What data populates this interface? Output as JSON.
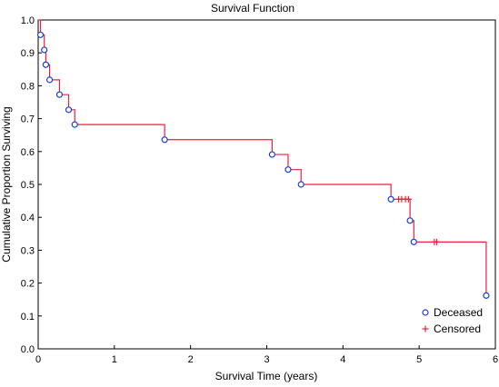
{
  "chart_data": {
    "type": "line",
    "title": "Survival Function",
    "xlabel": "Survival Time (years)",
    "ylabel": "Cumulative Proportion Surviving",
    "xlim": [
      0,
      6
    ],
    "ylim": [
      0,
      1.0
    ],
    "xticks": [
      "0",
      "1",
      "2",
      "3",
      "4",
      "5",
      "6"
    ],
    "yticks": [
      "0.0",
      "0.1",
      "0.2",
      "0.3",
      "0.4",
      "0.5",
      "0.6",
      "0.7",
      "0.8",
      "0.9",
      "1.0"
    ],
    "grid": false,
    "legend_position": "bottom-right",
    "colors": {
      "line": "#e8223a",
      "deceased_marker": "#1a3fd6",
      "censored_marker": "#e8223a",
      "frame": "#000000"
    },
    "series": [
      {
        "name": "Deceased",
        "marker": "circle",
        "x": [
          0.03,
          0.08,
          0.1,
          0.15,
          0.28,
          0.4,
          0.48,
          1.66,
          3.07,
          3.28,
          3.45,
          4.63,
          4.88,
          4.93,
          5.88
        ],
        "y": [
          0.955,
          0.909,
          0.864,
          0.818,
          0.773,
          0.727,
          0.682,
          0.636,
          0.591,
          0.545,
          0.5,
          0.455,
          0.39,
          0.325,
          0.162
        ]
      },
      {
        "name": "Censored",
        "marker": "plus",
        "x": [
          4.73,
          4.77,
          4.82,
          4.86,
          5.2,
          5.23
        ],
        "y": [
          0.455,
          0.455,
          0.455,
          0.455,
          0.325,
          0.325
        ]
      }
    ],
    "step_curve": {
      "x": [
        0,
        0.03,
        0.08,
        0.1,
        0.15,
        0.28,
        0.4,
        0.48,
        1.66,
        3.07,
        3.28,
        3.45,
        4.63,
        4.88,
        4.93,
        5.88
      ],
      "y": [
        1.0,
        0.955,
        0.909,
        0.864,
        0.818,
        0.773,
        0.727,
        0.682,
        0.636,
        0.591,
        0.545,
        0.5,
        0.455,
        0.39,
        0.325,
        0.162
      ]
    }
  }
}
